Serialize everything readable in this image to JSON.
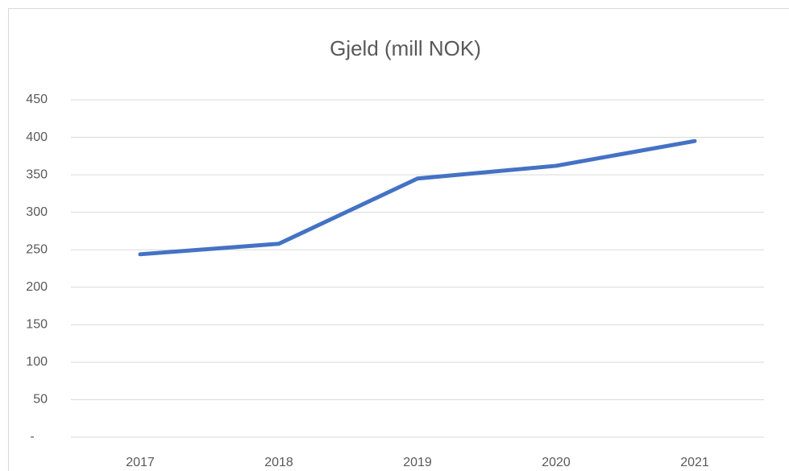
{
  "chart_data": {
    "type": "line",
    "title": "Gjeld (mill NOK)",
    "categories": [
      "2017",
      "2018",
      "2019",
      "2020",
      "2021"
    ],
    "series": [
      {
        "color": "#4472c4",
        "values": [
          244,
          258,
          345,
          362,
          395
        ]
      }
    ],
    "ylim": [
      0,
      450
    ],
    "yticks": [
      {
        "value": 0,
        "label": "-"
      },
      50,
      100,
      150,
      200,
      250,
      300,
      350,
      400,
      450
    ],
    "grid": true
  }
}
